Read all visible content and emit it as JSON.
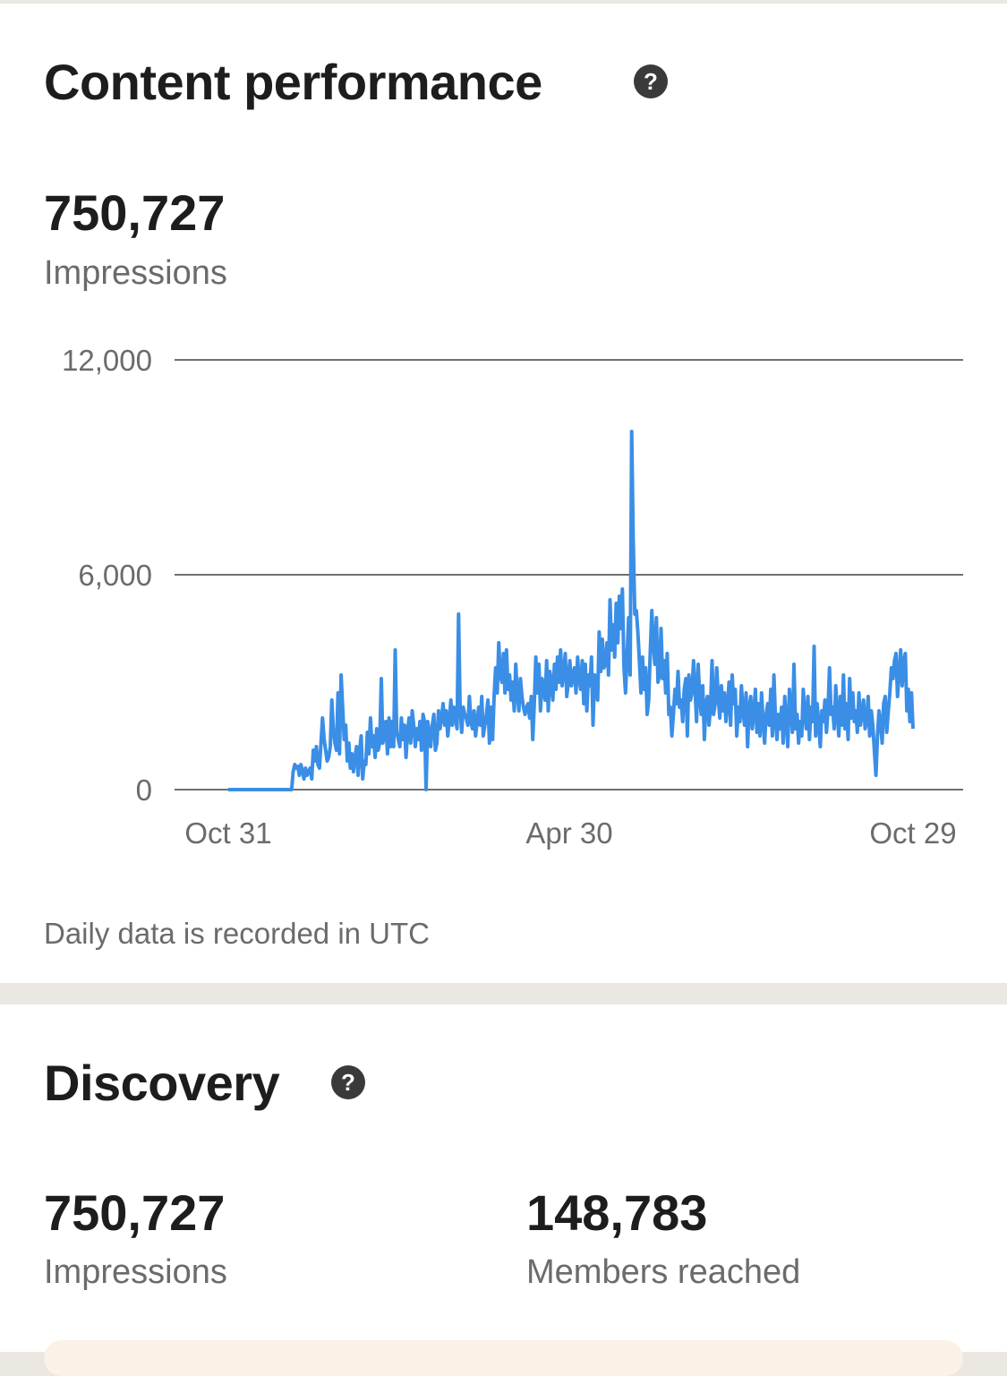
{
  "content_performance": {
    "title": "Content performance",
    "help_icon": "question-mark-icon",
    "total_value": "750,727",
    "total_label": "Impressions",
    "footnote": "Daily data is recorded in UTC"
  },
  "discovery": {
    "title": "Discovery",
    "help_icon": "question-mark-icon",
    "metrics": [
      {
        "value": "750,727",
        "label": "Impressions"
      },
      {
        "value": "148,783",
        "label": "Members reached"
      }
    ]
  },
  "chart_data": {
    "type": "line",
    "series": [
      {
        "color": "#3a8ee6",
        "values": [
          0,
          0,
          0,
          0,
          0,
          0,
          0,
          0,
          0,
          0,
          0,
          0,
          0,
          0,
          0,
          0,
          0,
          0,
          0,
          0,
          0,
          0,
          0,
          0,
          0,
          0,
          0,
          0,
          0,
          0,
          0,
          0,
          0,
          0,
          0,
          0,
          0,
          0,
          0,
          0,
          0,
          0,
          500,
          700,
          600,
          650,
          400,
          700,
          500,
          300,
          600,
          400,
          500,
          600,
          300,
          1100,
          800,
          1200,
          700,
          600,
          1300,
          2000,
          1400,
          1100,
          800,
          900,
          1200,
          2500,
          1700,
          1300,
          1100,
          2700,
          1000,
          3200,
          2300,
          1400,
          1800,
          800,
          1300,
          600,
          1000,
          500,
          900,
          1200,
          400,
          1100,
          1500,
          300,
          800,
          700,
          1600,
          1000,
          2000,
          1200,
          1500,
          900,
          1700,
          1100,
          1300,
          3100,
          1300,
          1600,
          1900,
          1000,
          2000,
          1200,
          1900,
          1200,
          3900,
          1600,
          1400,
          1200,
          2000,
          1400,
          1800,
          900,
          1600,
          2000,
          1300,
          2200,
          1800,
          1200,
          1700,
          1400,
          1900,
          1100,
          2100,
          1900,
          0,
          1900,
          1600,
          1200,
          1800,
          2100,
          1100,
          1300,
          2200,
          1700,
          2000,
          2400,
          1800,
          2200,
          1500,
          1900,
          2500,
          1800,
          2300,
          2000,
          1700,
          4900,
          2300,
          1600,
          2300,
          2100,
          2000,
          1800,
          2600,
          1900,
          1700,
          2200,
          1500,
          1900,
          2300,
          1800,
          2600,
          1500,
          1800,
          2100,
          2500,
          1300,
          2300,
          1400,
          2600,
          3400,
          2700,
          4100,
          3200,
          3000,
          3800,
          2700,
          3900,
          2800,
          3200,
          2500,
          3000,
          2200,
          3500,
          2700,
          2200,
          3100,
          2600,
          2300,
          2100,
          2300,
          2400,
          2000,
          2600,
          1400,
          2400,
          3700,
          2700,
          3500,
          2200,
          3100,
          2800,
          2500,
          3600,
          2200,
          3300,
          3000,
          2500,
          3500,
          2800,
          3700,
          3000,
          3900,
          2900,
          3300,
          3800,
          2600,
          3000,
          3600,
          2900,
          3200,
          3400,
          2700,
          3700,
          3100,
          2800,
          3600,
          2400,
          3500,
          2200,
          3200,
          2900,
          3700,
          1800,
          3200,
          3000,
          2500,
          4400,
          3300,
          4200,
          3400,
          3500,
          4100,
          3200,
          5300,
          3900,
          4600,
          3700,
          5200,
          4100,
          5400,
          4500,
          5600,
          3400,
          2700,
          3700,
          4800,
          3200,
          10000,
          7000,
          4900,
          5000,
          4400,
          3600,
          2700,
          3700,
          2800,
          3400,
          2100,
          2500,
          3800,
          5000,
          4000,
          3500,
          4800,
          3000,
          3200,
          4500,
          3100,
          3600,
          2700,
          3800,
          2100,
          2300,
          1500,
          2100,
          2800,
          2400,
          3300,
          2300,
          2500,
          1900,
          2800,
          3100,
          1500,
          3200,
          2500,
          2700,
          3600,
          2800,
          1900,
          3500,
          2600,
          2100,
          2900,
          1400,
          2400,
          2600,
          1800,
          2300,
          3600,
          2100,
          2400,
          3400,
          2600,
          2000,
          2900,
          2200,
          2700,
          1900,
          2400,
          3000,
          1800,
          3200,
          2400,
          2800,
          1500,
          2300,
          1900,
          2900,
          2200,
          1800,
          2700,
          1200,
          2300,
          2600,
          1700,
          2100,
          2800,
          1600,
          2400,
          1500,
          2700,
          1900,
          1300,
          2100,
          2400,
          1800,
          2800,
          1500,
          3200,
          2000,
          1400,
          2100,
          1700,
          2300,
          1300,
          2600,
          1900,
          1200,
          2800,
          2200,
          1600,
          3500,
          1700,
          2100,
          1300,
          1900,
          1500,
          2800,
          2100,
          1700,
          2600,
          1400,
          2300,
          1900,
          4000,
          1500,
          2400,
          1800,
          1200,
          2200,
          1900,
          2500,
          1600,
          2200,
          3400,
          2100,
          2300,
          1700,
          2900,
          2100,
          1500,
          2600,
          1800,
          3200,
          1700,
          2400,
          1400,
          3100,
          2000,
          2700,
          1900,
          2200,
          1600,
          2700,
          1800,
          2100,
          2500,
          1700,
          1900,
          2600,
          1500,
          2200,
          1800,
          1100,
          400,
          1500,
          2200,
          1900,
          1300,
          2400,
          2600,
          1600,
          2200,
          2700,
          3400,
          3100,
          3600,
          3800,
          2600,
          3300,
          3900,
          2900,
          3600,
          3800,
          2200,
          2800,
          1900,
          2700,
          1700
        ]
      }
    ],
    "x_ticks": [
      "Oct 31",
      "Apr 30",
      "Oct 29"
    ],
    "y_ticks": [
      "12,000",
      "6,000",
      "0"
    ],
    "ylim": [
      0,
      12000
    ],
    "grid": true
  }
}
